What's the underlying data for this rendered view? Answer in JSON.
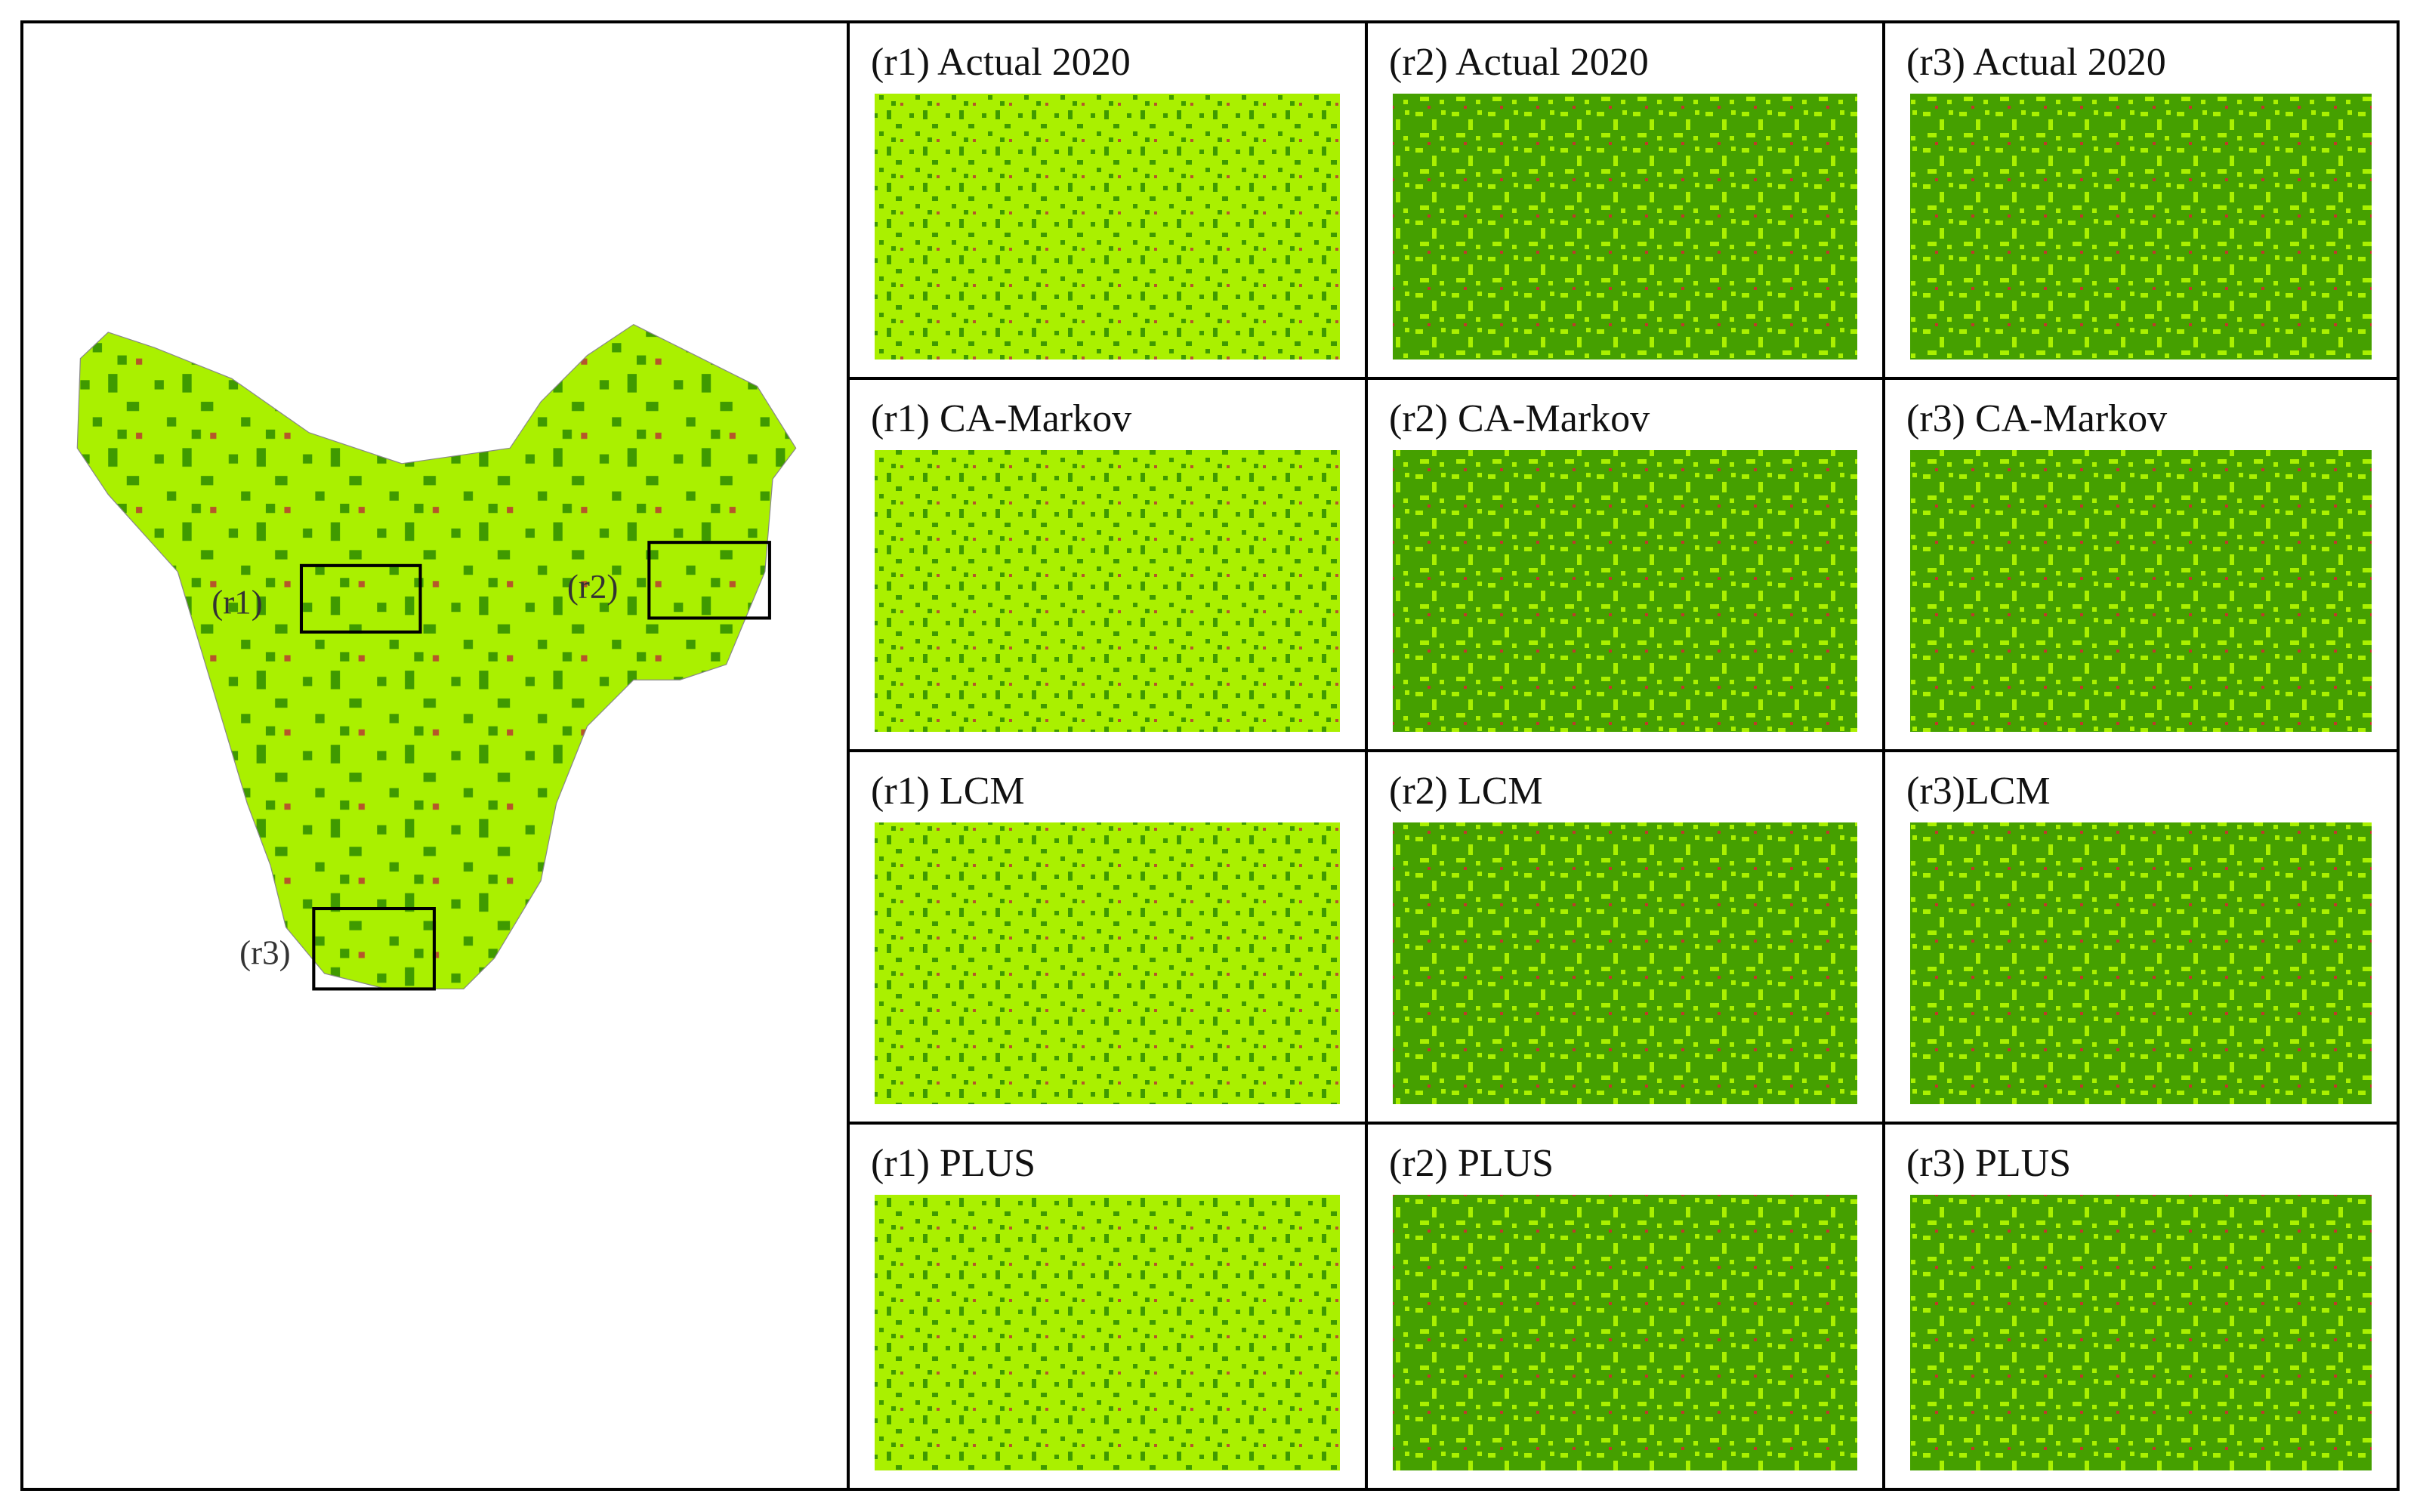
{
  "map": {
    "labels": [
      "(r1)",
      "(r2)",
      "(r3)"
    ]
  },
  "grid": [
    [
      "(r1) Actual 2020",
      "(r2) Actual 2020",
      "(r3) Actual 2020"
    ],
    [
      "(r1) CA-Markov",
      "(r2) CA-Markov",
      "(r3) CA-Markov"
    ],
    [
      "(r1) LCM",
      "(r2) LCM",
      "(r3)LCM"
    ],
    [
      "(r1) PLUS",
      "(r2) PLUS",
      "(r3) PLUS"
    ]
  ]
}
